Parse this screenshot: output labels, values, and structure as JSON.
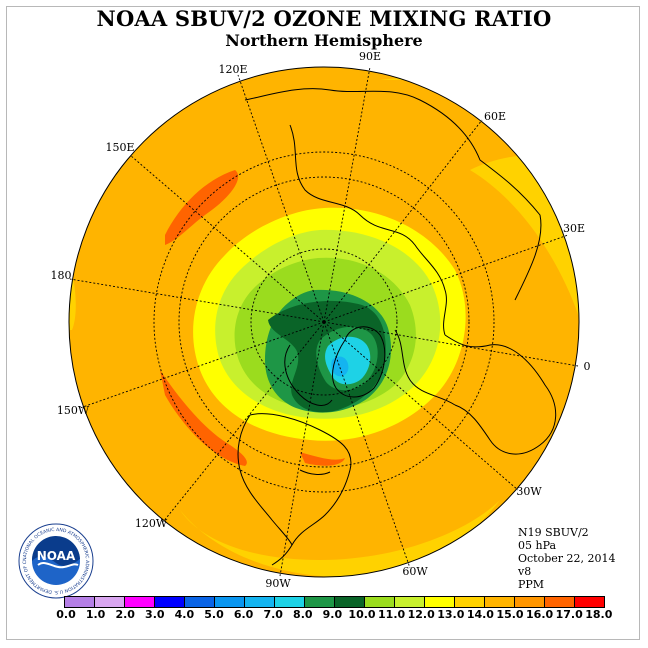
{
  "title": "NOAA SBUV/2 OZONE MIXING RATIO",
  "subtitle": "Northern Hemisphere",
  "meridian_labels": [
    "90E",
    "60E",
    "30E",
    "0",
    "30W",
    "60W",
    "90W",
    "120W",
    "150W",
    "180",
    "150E",
    "120E"
  ],
  "info": {
    "instrument": "N19 SBUV/2",
    "level": "05 hPa",
    "date": "October 22, 2014",
    "version": "v8",
    "units": "PPM"
  },
  "colorbar": {
    "ticks": [
      "0.0",
      "1.0",
      "2.0",
      "3.0",
      "4.0",
      "5.0",
      "6.0",
      "7.0",
      "8.0",
      "9.0",
      "10.0",
      "11.0",
      "12.0",
      "13.0",
      "14.0",
      "15.0",
      "16.0",
      "17.0",
      "18.0"
    ],
    "colors": [
      "#b57fe6",
      "#d9a6f0",
      "#ff00ff",
      "#0000ff",
      "#0a64e6",
      "#0a96f0",
      "#14b4f0",
      "#1ed2e6",
      "#1e9646",
      "#0a6428",
      "#9bdc1e",
      "#c8f02d",
      "#ffff00",
      "#ffd200",
      "#ffb400",
      "#ff9600",
      "#ff6400",
      "#ff0000",
      "#8b5a3c"
    ]
  },
  "logo": {
    "text": "NOAA",
    "ring_text": "NATIONAL OCEANIC AND ATMOSPHERIC ADMINISTRATION U.S. DEPARTMENT OF COMMERCE"
  }
}
